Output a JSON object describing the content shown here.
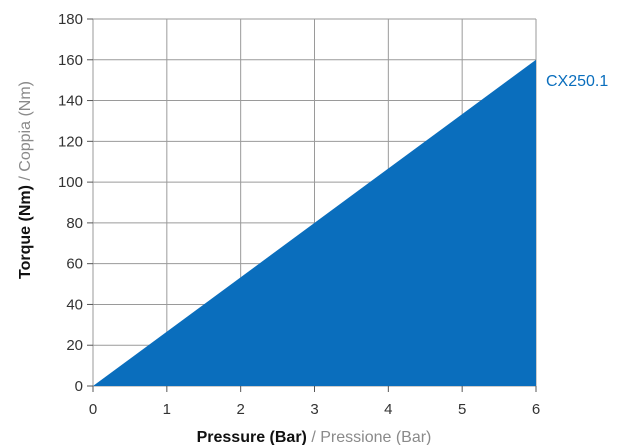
{
  "chart_data": {
    "type": "area",
    "x": [
      0,
      6
    ],
    "series": [
      {
        "name": "CX250.1",
        "values": [
          0,
          160
        ],
        "color": "#0a6ebd"
      }
    ],
    "xlim": [
      0,
      6
    ],
    "ylim": [
      0,
      180
    ],
    "x_ticks": [
      "0",
      "1",
      "2",
      "3",
      "4",
      "5",
      "6"
    ],
    "y_ticks": [
      "0",
      "20",
      "40",
      "60",
      "80",
      "100",
      "120",
      "140",
      "160",
      "180"
    ],
    "xlabel": {
      "primary": "Pressure (Bar)",
      "separator": "/",
      "secondary": "Pressione (Bar)"
    },
    "ylabel": {
      "primary": "Torque (Nm)",
      "separator": "/",
      "secondary": "Coppia (Nm)"
    },
    "grid": true
  }
}
